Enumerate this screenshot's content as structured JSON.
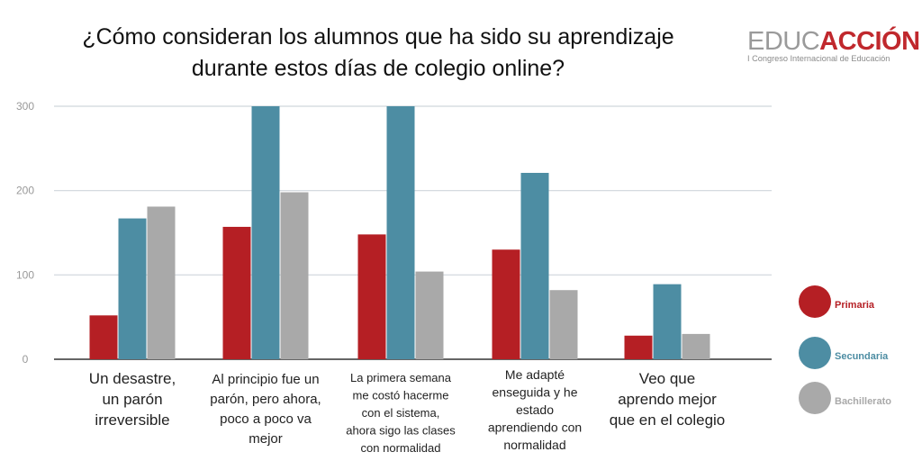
{
  "title_line1": "¿Cómo consideran los alumnos que ha sido su aprendizaje",
  "title_line2": "durante estos días de colegio online?",
  "brand": {
    "name_part1": "EDUC",
    "name_part2": "ACCIÓN",
    "subtitle": "I Congreso Internacional de Educación"
  },
  "colors": {
    "primaria": "#b51f24",
    "secundaria": "#4d8da3",
    "bachillerato": "#a9a9a9",
    "grid": "#cfd6dc",
    "axis": "#333333"
  },
  "chart_data": {
    "type": "bar",
    "title": "¿Cómo consideran los alumnos que ha sido su aprendizaje durante estos días de colegio online?",
    "categories": [
      [
        "Un desastre,",
        "un parón",
        "irreversible"
      ],
      [
        "Al principio fue un",
        "parón, pero ahora,",
        "poco a poco va",
        "mejor"
      ],
      [
        "La primera semana",
        "me costó hacerme",
        "con el sistema,",
        "ahora sigo las clases",
        "con normalidad"
      ],
      [
        "Me adapté",
        "enseguida y he",
        "estado",
        "aprendiendo con",
        "normalidad"
      ],
      [
        "Veo que",
        "aprendo mejor",
        "que en el colegio"
      ]
    ],
    "series": [
      {
        "name": "Primaria",
        "values": [
          52,
          157,
          148,
          130,
          28
        ]
      },
      {
        "name": "Secundaria",
        "values": [
          167,
          300,
          300,
          221,
          89
        ]
      },
      {
        "name": "Bachillerato",
        "values": [
          181,
          198,
          104,
          82,
          30
        ]
      }
    ],
    "yticks": [
      0,
      100,
      200,
      300
    ],
    "ylim": [
      0,
      300
    ],
    "grid": true,
    "legend": "right"
  }
}
